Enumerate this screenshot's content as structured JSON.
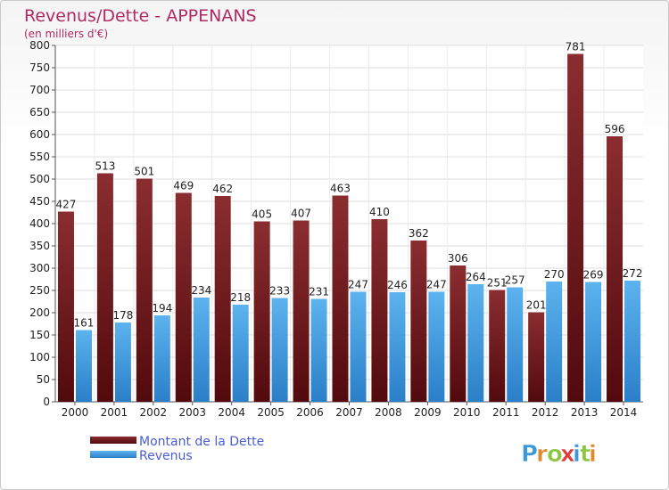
{
  "chart_data": {
    "type": "bar",
    "title": "Revenus/Dette - APPENANS",
    "subtitle": "(en milliers d'€)",
    "categories": [
      "2000",
      "2001",
      "2002",
      "2003",
      "2004",
      "2005",
      "2006",
      "2007",
      "2008",
      "2009",
      "2010",
      "2011",
      "2012",
      "2013",
      "2014"
    ],
    "series": [
      {
        "name": "Montant de la Dette",
        "color": "#7a1c1f",
        "values": [
          427,
          513,
          501,
          469,
          462,
          405,
          407,
          463,
          410,
          362,
          306,
          251,
          201,
          781,
          596
        ]
      },
      {
        "name": "Revenus",
        "color": "#3f9ee0",
        "values": [
          161,
          178,
          194,
          234,
          218,
          233,
          231,
          247,
          246,
          247,
          264,
          257,
          270,
          269,
          272
        ]
      }
    ],
    "data_labels": [
      [
        "427",
        "513",
        "501",
        "469",
        "462",
        "405",
        "407",
        "463",
        "410",
        "362",
        "306",
        "251",
        "201",
        "781",
        "596"
      ],
      [
        "161",
        "178",
        "194",
        "234",
        "218",
        "233",
        "231",
        "247",
        "246",
        "247",
        "264",
        "257",
        "270",
        "269",
        "272"
      ]
    ],
    "y_ticks": [
      "0",
      "50",
      "100",
      "150",
      "200",
      "250",
      "300",
      "350",
      "400",
      "450",
      "500",
      "550",
      "600",
      "650",
      "700",
      "750",
      "800"
    ],
    "ylim": [
      0,
      800
    ],
    "grid": true,
    "legend_position": "bottom-left"
  },
  "logo": {
    "letters": [
      "P",
      "r",
      "o",
      "x",
      "i",
      "t",
      "i"
    ],
    "colors": [
      "#3a9ad9",
      "#e08a2e",
      "#8cc63f",
      "#e03a3a",
      "#3a9ad9",
      "#8cc63f",
      "#e08a2e"
    ]
  }
}
